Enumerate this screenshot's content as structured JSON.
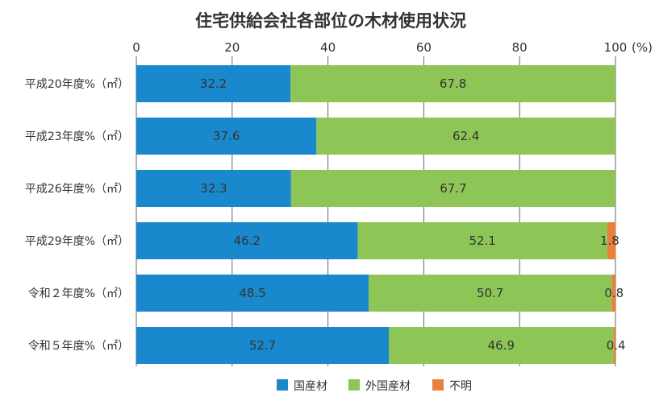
{
  "chart_data": {
    "type": "bar",
    "orientation": "horizontal",
    "stacked": true,
    "title": "住宅供給会社各部位の木材使用状況",
    "categories": [
      "平成20年度%（㎡）",
      "平成23年度%（㎡）",
      "平成26年度%（㎡）",
      "平成29年度%（㎡）",
      "令和２年度%（㎡）",
      "令和５年度%（㎡）"
    ],
    "series": [
      {
        "name": "国産材",
        "color": "#1a88cc",
        "values": [
          32.2,
          37.6,
          32.3,
          46.2,
          48.5,
          52.7
        ]
      },
      {
        "name": "外国産材",
        "color": "#8dc556",
        "values": [
          67.8,
          62.4,
          67.7,
          52.1,
          50.7,
          46.9
        ]
      },
      {
        "name": "不明",
        "color": "#e8823a",
        "values": [
          0,
          0,
          0,
          1.8,
          0.8,
          0.4
        ]
      }
    ],
    "data_labels": [
      [
        "32.2",
        "67.8",
        ""
      ],
      [
        "37.6",
        "62.4",
        ""
      ],
      [
        "32.3",
        "67.7",
        ""
      ],
      [
        "46.2",
        "52.1",
        "1.8"
      ],
      [
        "48.5",
        "50.7",
        "0.8"
      ],
      [
        "52.7",
        "46.9",
        "0.4"
      ]
    ],
    "x_ticks": [
      "0",
      "20",
      "40",
      "60",
      "80",
      "100"
    ],
    "x_unit": "(%)",
    "xlim": [
      0,
      100
    ],
    "grid": true,
    "legend": "bottom"
  }
}
